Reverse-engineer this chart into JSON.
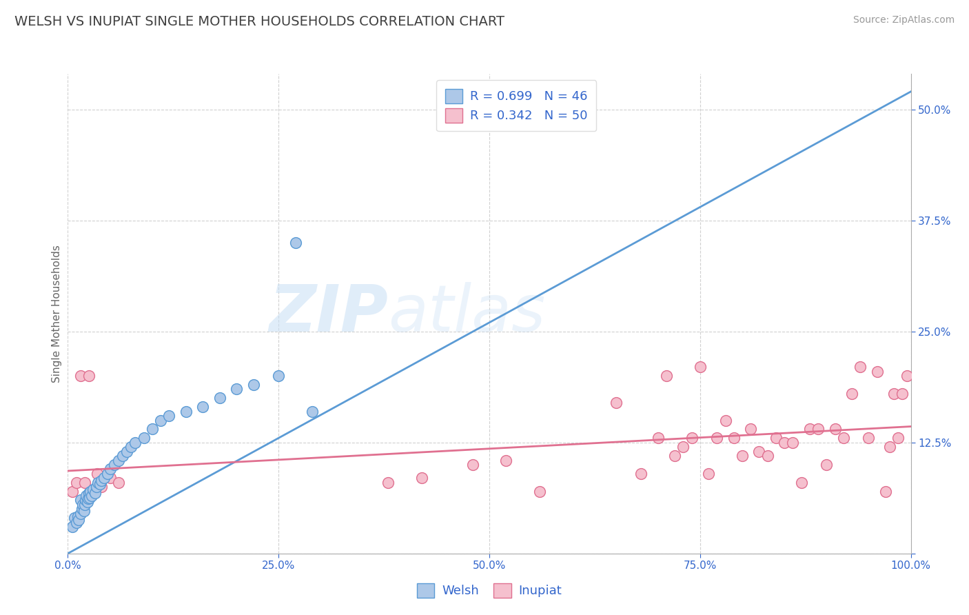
{
  "title": "WELSH VS INUPIAT SINGLE MOTHER HOUSEHOLDS CORRELATION CHART",
  "source": "Source: ZipAtlas.com",
  "ylabel": "Single Mother Households",
  "watermark_zip": "ZIP",
  "watermark_atlas": "atlas",
  "xlim": [
    0,
    1.0
  ],
  "ylim": [
    0.0,
    0.54
  ],
  "xticks": [
    0.0,
    0.25,
    0.5,
    0.75,
    1.0
  ],
  "xtick_labels": [
    "0.0%",
    "25.0%",
    "50.0%",
    "75.0%",
    "100.0%"
  ],
  "yticks": [
    0.0,
    0.125,
    0.25,
    0.375,
    0.5
  ],
  "ytick_labels": [
    "",
    "12.5%",
    "25.0%",
    "37.5%",
    "50.0%"
  ],
  "welsh_R": 0.699,
  "welsh_N": 46,
  "inupiat_R": 0.342,
  "inupiat_N": 50,
  "welsh_color": "#adc8e8",
  "welsh_edge_color": "#5b9bd5",
  "welsh_line_color": "#5b9bd5",
  "inupiat_color": "#f5c0ce",
  "inupiat_edge_color": "#e07090",
  "inupiat_line_color": "#e07090",
  "legend_text_color": "#3366cc",
  "title_color": "#404040",
  "grid_color": "#d0d0d0",
  "background": "#ffffff",
  "welsh_x": [
    0.005,
    0.008,
    0.01,
    0.012,
    0.013,
    0.015,
    0.015,
    0.017,
    0.018,
    0.019,
    0.02,
    0.021,
    0.022,
    0.023,
    0.024,
    0.025,
    0.026,
    0.027,
    0.028,
    0.03,
    0.032,
    0.034,
    0.036,
    0.038,
    0.04,
    0.043,
    0.047,
    0.05,
    0.055,
    0.06,
    0.065,
    0.07,
    0.075,
    0.08,
    0.09,
    0.1,
    0.11,
    0.12,
    0.14,
    0.16,
    0.18,
    0.2,
    0.22,
    0.25,
    0.27,
    0.29
  ],
  "welsh_y": [
    0.03,
    0.04,
    0.035,
    0.042,
    0.038,
    0.045,
    0.06,
    0.05,
    0.055,
    0.048,
    0.055,
    0.06,
    0.065,
    0.058,
    0.062,
    0.068,
    0.063,
    0.07,
    0.065,
    0.072,
    0.068,
    0.075,
    0.08,
    0.078,
    0.082,
    0.085,
    0.09,
    0.095,
    0.1,
    0.105,
    0.11,
    0.115,
    0.12,
    0.125,
    0.13,
    0.14,
    0.15,
    0.155,
    0.16,
    0.165,
    0.175,
    0.185,
    0.19,
    0.2,
    0.35,
    0.16
  ],
  "welsh_trend_x": [
    0.0,
    1.0
  ],
  "welsh_trend_y": [
    0.0,
    0.52
  ],
  "inupiat_x": [
    0.005,
    0.01,
    0.015,
    0.02,
    0.025,
    0.03,
    0.035,
    0.04,
    0.05,
    0.06,
    0.38,
    0.42,
    0.48,
    0.52,
    0.56,
    0.65,
    0.68,
    0.7,
    0.71,
    0.72,
    0.73,
    0.74,
    0.75,
    0.76,
    0.77,
    0.78,
    0.79,
    0.8,
    0.81,
    0.82,
    0.83,
    0.84,
    0.85,
    0.86,
    0.87,
    0.88,
    0.89,
    0.9,
    0.91,
    0.92,
    0.93,
    0.94,
    0.95,
    0.96,
    0.97,
    0.975,
    0.98,
    0.985,
    0.99,
    0.995
  ],
  "inupiat_y": [
    0.07,
    0.08,
    0.2,
    0.08,
    0.2,
    0.07,
    0.09,
    0.075,
    0.085,
    0.08,
    0.08,
    0.085,
    0.1,
    0.105,
    0.07,
    0.17,
    0.09,
    0.13,
    0.2,
    0.11,
    0.12,
    0.13,
    0.21,
    0.09,
    0.13,
    0.15,
    0.13,
    0.11,
    0.14,
    0.115,
    0.11,
    0.13,
    0.125,
    0.125,
    0.08,
    0.14,
    0.14,
    0.1,
    0.14,
    0.13,
    0.18,
    0.21,
    0.13,
    0.205,
    0.07,
    0.12,
    0.18,
    0.13,
    0.18,
    0.2
  ],
  "inupiat_trend_x": [
    0.0,
    1.0
  ],
  "inupiat_trend_y": [
    0.093,
    0.143
  ]
}
